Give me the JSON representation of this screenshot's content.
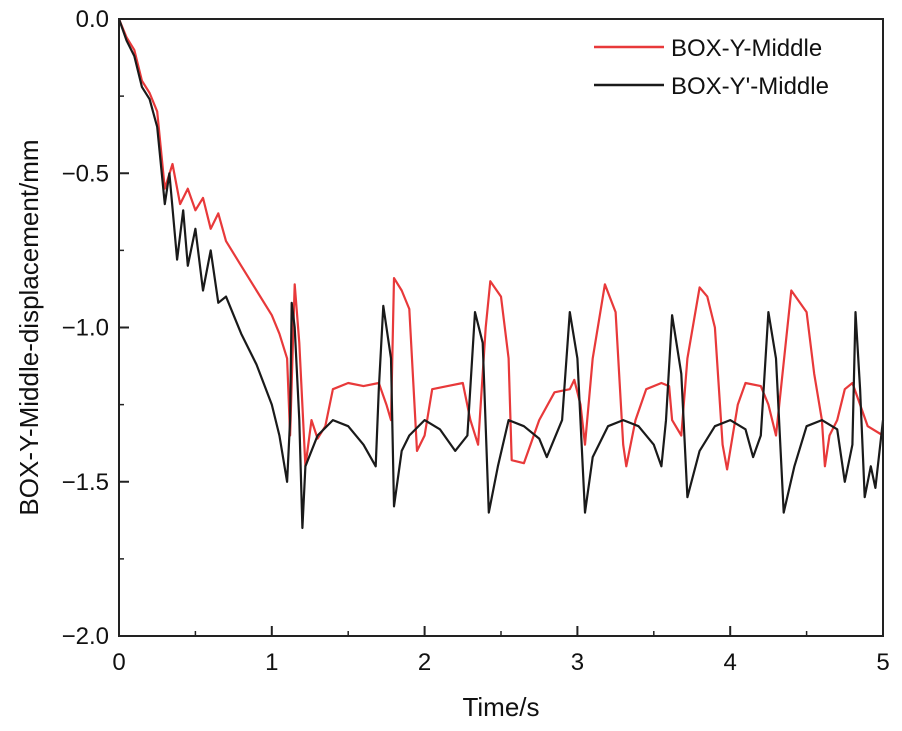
{
  "chart_data": {
    "type": "line",
    "xlabel": "Time/s",
    "ylabel": "BOX-Y-Middle-displacement/mm",
    "xlim": [
      0,
      5
    ],
    "ylim": [
      -2.0,
      0.0
    ],
    "x_ticks": [
      0,
      1,
      2,
      3,
      4,
      5
    ],
    "x_tick_labels": [
      "0",
      "1",
      "2",
      "3",
      "4",
      "5"
    ],
    "y_ticks": [
      0.0,
      -0.5,
      -1.0,
      -1.5,
      -2.0
    ],
    "y_tick_labels": [
      "0.0",
      "−0.5",
      "−1.0",
      "−1.5",
      "−2.0"
    ],
    "grid": false,
    "legend_position": "top-right",
    "series": [
      {
        "name": "BOX-Y-Middle",
        "color": "#e8393a",
        "points": [
          [
            0,
            0
          ],
          [
            0.05,
            -0.06
          ],
          [
            0.1,
            -0.1
          ],
          [
            0.15,
            -0.2
          ],
          [
            0.2,
            -0.24
          ],
          [
            0.25,
            -0.3
          ],
          [
            0.3,
            -0.55
          ],
          [
            0.35,
            -0.47
          ],
          [
            0.4,
            -0.6
          ],
          [
            0.45,
            -0.55
          ],
          [
            0.5,
            -0.62
          ],
          [
            0.55,
            -0.58
          ],
          [
            0.6,
            -0.68
          ],
          [
            0.65,
            -0.63
          ],
          [
            0.7,
            -0.72
          ],
          [
            0.8,
            -0.8
          ],
          [
            0.9,
            -0.88
          ],
          [
            1.0,
            -0.96
          ],
          [
            1.05,
            -1.02
          ],
          [
            1.1,
            -1.1
          ],
          [
            1.12,
            -1.35
          ],
          [
            1.15,
            -0.86
          ],
          [
            1.18,
            -1.05
          ],
          [
            1.22,
            -1.45
          ],
          [
            1.26,
            -1.3
          ],
          [
            1.3,
            -1.36
          ],
          [
            1.35,
            -1.32
          ],
          [
            1.4,
            -1.2
          ],
          [
            1.5,
            -1.18
          ],
          [
            1.6,
            -1.19
          ],
          [
            1.7,
            -1.18
          ],
          [
            1.75,
            -1.25
          ],
          [
            1.78,
            -1.3
          ],
          [
            1.8,
            -0.84
          ],
          [
            1.85,
            -0.88
          ],
          [
            1.9,
            -0.94
          ],
          [
            1.95,
            -1.4
          ],
          [
            2.0,
            -1.35
          ],
          [
            2.05,
            -1.2
          ],
          [
            2.15,
            -1.19
          ],
          [
            2.25,
            -1.18
          ],
          [
            2.3,
            -1.3
          ],
          [
            2.35,
            -1.38
          ],
          [
            2.4,
            -1.0
          ],
          [
            2.43,
            -0.85
          ],
          [
            2.5,
            -0.9
          ],
          [
            2.55,
            -1.1
          ],
          [
            2.57,
            -1.43
          ],
          [
            2.65,
            -1.44
          ],
          [
            2.75,
            -1.3
          ],
          [
            2.85,
            -1.21
          ],
          [
            2.95,
            -1.2
          ],
          [
            2.98,
            -1.17
          ],
          [
            3.02,
            -1.25
          ],
          [
            3.05,
            -1.38
          ],
          [
            3.1,
            -1.1
          ],
          [
            3.18,
            -0.86
          ],
          [
            3.25,
            -0.95
          ],
          [
            3.3,
            -1.38
          ],
          [
            3.32,
            -1.45
          ],
          [
            3.38,
            -1.3
          ],
          [
            3.45,
            -1.2
          ],
          [
            3.55,
            -1.18
          ],
          [
            3.6,
            -1.19
          ],
          [
            3.62,
            -1.3
          ],
          [
            3.68,
            -1.35
          ],
          [
            3.72,
            -1.1
          ],
          [
            3.8,
            -0.87
          ],
          [
            3.85,
            -0.9
          ],
          [
            3.9,
            -1.0
          ],
          [
            3.95,
            -1.38
          ],
          [
            3.98,
            -1.46
          ],
          [
            4.05,
            -1.25
          ],
          [
            4.1,
            -1.18
          ],
          [
            4.2,
            -1.19
          ],
          [
            4.25,
            -1.25
          ],
          [
            4.3,
            -1.35
          ],
          [
            4.4,
            -0.88
          ],
          [
            4.5,
            -0.95
          ],
          [
            4.55,
            -1.15
          ],
          [
            4.6,
            -1.3
          ],
          [
            4.62,
            -1.45
          ],
          [
            4.65,
            -1.35
          ],
          [
            4.7,
            -1.3
          ],
          [
            4.75,
            -1.2
          ],
          [
            4.8,
            -1.18
          ],
          [
            4.85,
            -1.25
          ],
          [
            4.9,
            -1.32
          ],
          [
            5.0,
            -1.35
          ]
        ]
      },
      {
        "name": "BOX-Y'-Middle",
        "color": "#1a1a1a",
        "points": [
          [
            0,
            0
          ],
          [
            0.05,
            -0.07
          ],
          [
            0.1,
            -0.12
          ],
          [
            0.15,
            -0.22
          ],
          [
            0.2,
            -0.26
          ],
          [
            0.25,
            -0.35
          ],
          [
            0.3,
            -0.6
          ],
          [
            0.33,
            -0.5
          ],
          [
            0.38,
            -0.78
          ],
          [
            0.42,
            -0.62
          ],
          [
            0.45,
            -0.8
          ],
          [
            0.5,
            -0.68
          ],
          [
            0.55,
            -0.88
          ],
          [
            0.6,
            -0.75
          ],
          [
            0.65,
            -0.92
          ],
          [
            0.7,
            -0.9
          ],
          [
            0.8,
            -1.02
          ],
          [
            0.9,
            -1.12
          ],
          [
            1.0,
            -1.25
          ],
          [
            1.05,
            -1.35
          ],
          [
            1.1,
            -1.5
          ],
          [
            1.12,
            -1.3
          ],
          [
            1.13,
            -0.92
          ],
          [
            1.15,
            -1.0
          ],
          [
            1.18,
            -1.3
          ],
          [
            1.2,
            -1.65
          ],
          [
            1.22,
            -1.45
          ],
          [
            1.3,
            -1.35
          ],
          [
            1.4,
            -1.3
          ],
          [
            1.5,
            -1.32
          ],
          [
            1.6,
            -1.38
          ],
          [
            1.68,
            -1.45
          ],
          [
            1.7,
            -1.2
          ],
          [
            1.73,
            -0.93
          ],
          [
            1.78,
            -1.1
          ],
          [
            1.8,
            -1.58
          ],
          [
            1.85,
            -1.4
          ],
          [
            1.9,
            -1.35
          ],
          [
            2.0,
            -1.3
          ],
          [
            2.1,
            -1.33
          ],
          [
            2.2,
            -1.4
          ],
          [
            2.28,
            -1.35
          ],
          [
            2.33,
            -0.95
          ],
          [
            2.38,
            -1.05
          ],
          [
            2.42,
            -1.6
          ],
          [
            2.48,
            -1.45
          ],
          [
            2.55,
            -1.3
          ],
          [
            2.65,
            -1.32
          ],
          [
            2.75,
            -1.36
          ],
          [
            2.8,
            -1.42
          ],
          [
            2.9,
            -1.3
          ],
          [
            2.95,
            -0.95
          ],
          [
            3.0,
            -1.1
          ],
          [
            3.05,
            -1.6
          ],
          [
            3.1,
            -1.42
          ],
          [
            3.2,
            -1.32
          ],
          [
            3.3,
            -1.3
          ],
          [
            3.4,
            -1.32
          ],
          [
            3.5,
            -1.38
          ],
          [
            3.55,
            -1.45
          ],
          [
            3.58,
            -1.3
          ],
          [
            3.62,
            -0.96
          ],
          [
            3.68,
            -1.15
          ],
          [
            3.72,
            -1.55
          ],
          [
            3.8,
            -1.4
          ],
          [
            3.9,
            -1.32
          ],
          [
            4.0,
            -1.3
          ],
          [
            4.1,
            -1.33
          ],
          [
            4.15,
            -1.42
          ],
          [
            4.2,
            -1.35
          ],
          [
            4.25,
            -0.95
          ],
          [
            4.3,
            -1.1
          ],
          [
            4.35,
            -1.6
          ],
          [
            4.42,
            -1.45
          ],
          [
            4.5,
            -1.32
          ],
          [
            4.6,
            -1.3
          ],
          [
            4.7,
            -1.33
          ],
          [
            4.75,
            -1.5
          ],
          [
            4.8,
            -1.38
          ],
          [
            4.82,
            -0.95
          ],
          [
            4.85,
            -1.2
          ],
          [
            4.88,
            -1.55
          ],
          [
            4.92,
            -1.45
          ],
          [
            4.95,
            -1.52
          ],
          [
            5.0,
            -1.3
          ]
        ]
      }
    ]
  }
}
